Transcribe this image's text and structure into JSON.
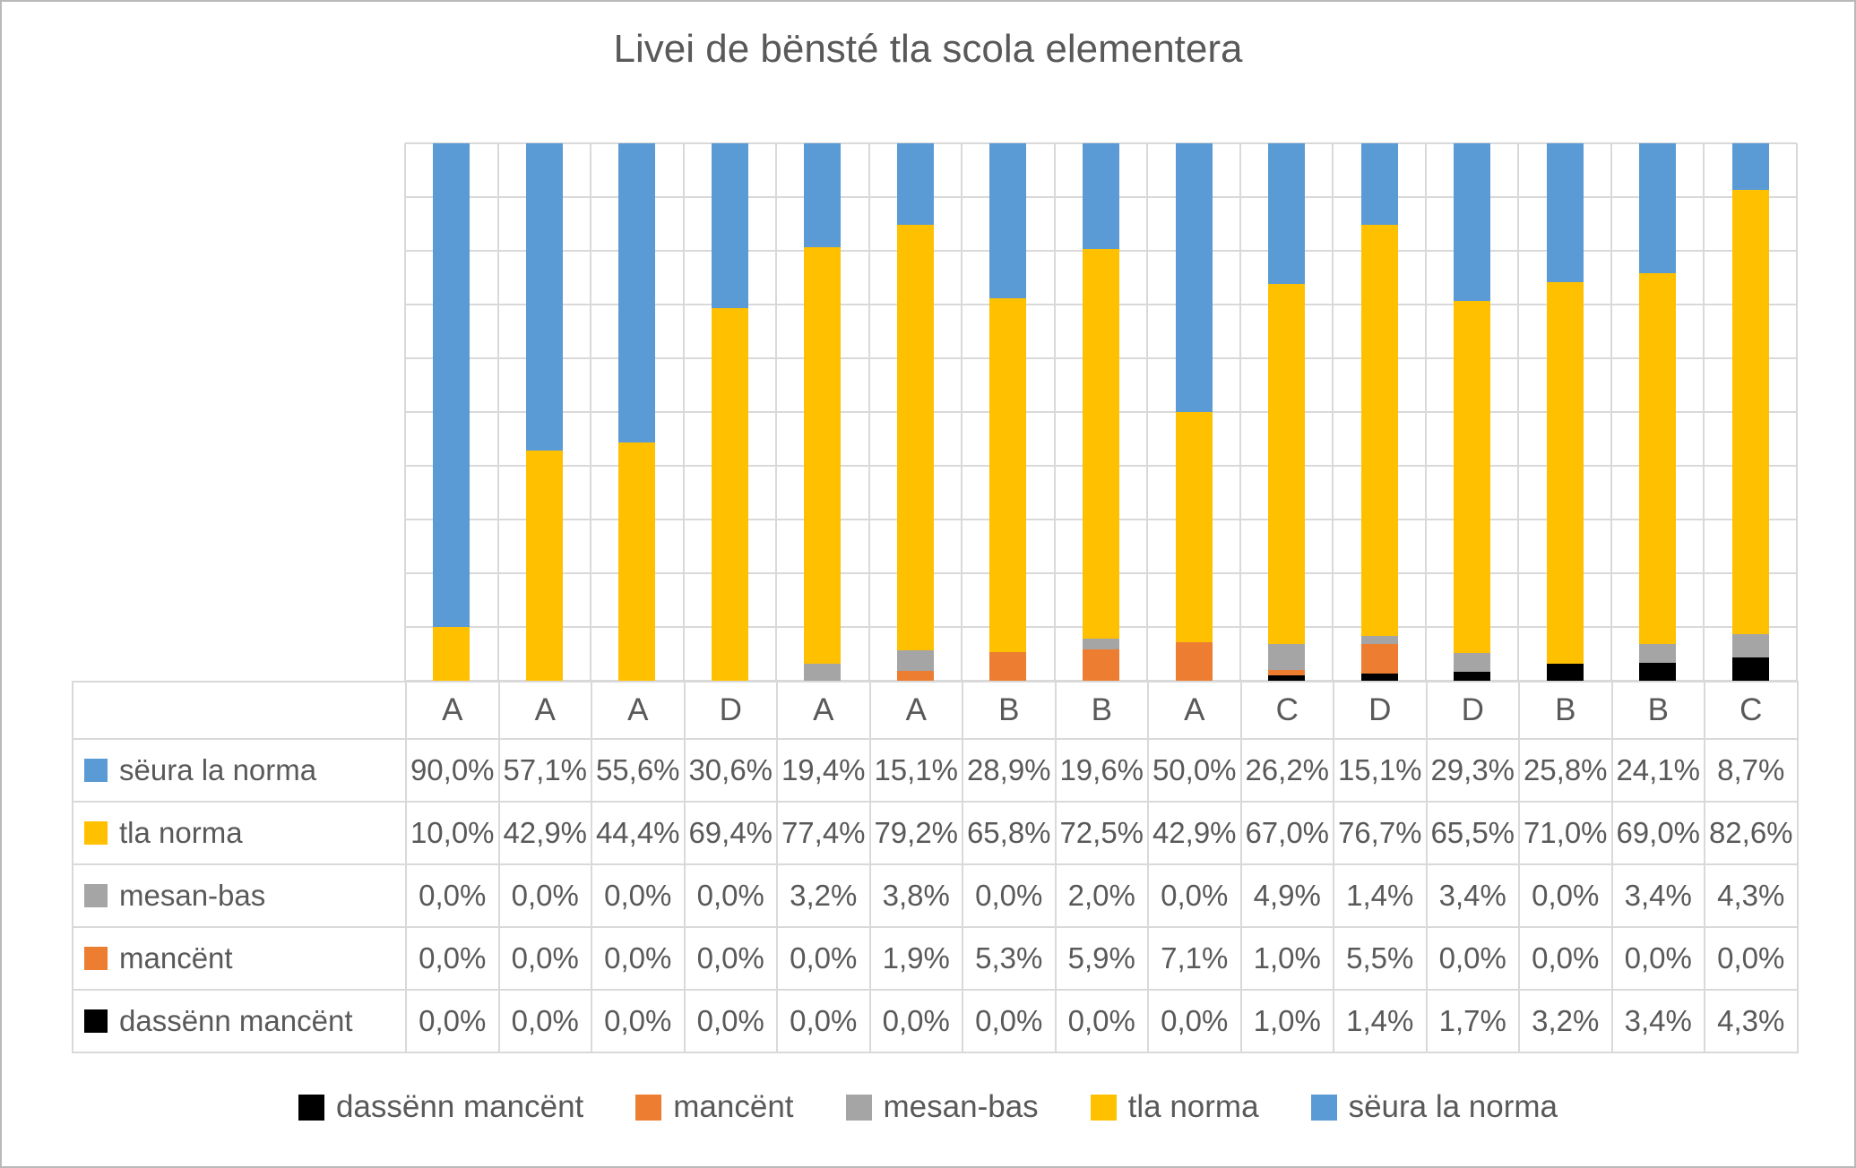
{
  "title": "Livei de bënsté tla scola elementera",
  "chart_data": {
    "type": "bar",
    "subtype": "100%-stacked-column",
    "title": "Livei de bënsté tla scola elementera",
    "categories": [
      "A",
      "A",
      "A",
      "D",
      "A",
      "A",
      "B",
      "B",
      "A",
      "C",
      "D",
      "D",
      "B",
      "B",
      "C"
    ],
    "series": [
      {
        "name": "dassënn mancënt",
        "color": "#000000",
        "values": [
          0.0,
          0.0,
          0.0,
          0.0,
          0.0,
          0.0,
          0.0,
          0.0,
          0.0,
          1.0,
          1.4,
          1.7,
          3.2,
          3.4,
          4.3
        ]
      },
      {
        "name": "mancënt",
        "color": "#ED7D31",
        "values": [
          0.0,
          0.0,
          0.0,
          0.0,
          0.0,
          1.9,
          5.3,
          5.9,
          7.1,
          1.0,
          5.5,
          0.0,
          0.0,
          0.0,
          0.0
        ]
      },
      {
        "name": "mesan-bas",
        "color": "#A5A5A5",
        "values": [
          0.0,
          0.0,
          0.0,
          0.0,
          3.2,
          3.8,
          0.0,
          2.0,
          0.0,
          4.9,
          1.4,
          3.4,
          0.0,
          3.4,
          4.3
        ]
      },
      {
        "name": "tla norma",
        "color": "#FFC000",
        "values": [
          10.0,
          42.9,
          44.4,
          69.4,
          77.4,
          79.2,
          65.8,
          72.5,
          42.9,
          67.0,
          76.7,
          65.5,
          71.0,
          69.0,
          82.6
        ]
      },
      {
        "name": "sëura la norma",
        "color": "#5B9BD5",
        "values": [
          90.0,
          57.1,
          55.6,
          30.6,
          19.4,
          15.1,
          28.9,
          19.6,
          50.0,
          26.2,
          15.1,
          29.3,
          25.8,
          24.1,
          8.7
        ]
      }
    ],
    "ylim": [
      0,
      100
    ],
    "value_format": "percent, 1 decimal, comma separator",
    "gridlines": "horizontal every 10% and vertical per category, light gray",
    "legend_position": "bottom",
    "table_row_order_top_to_bottom": [
      "sëura la norma",
      "tla norma",
      "mesan-bas",
      "mancënt",
      "dassënn mancënt"
    ],
    "colors": {
      "grid": "#D9D9D9",
      "text": "#595959",
      "background": "#FFFFFF"
    }
  }
}
